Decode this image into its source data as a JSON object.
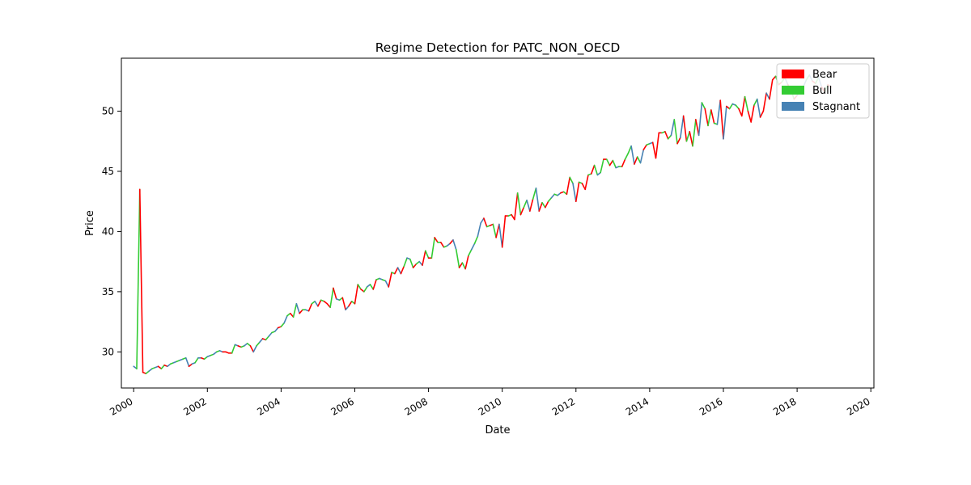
{
  "chart_data": {
    "type": "line",
    "title": "Regime Detection for PATC_NON_OECD",
    "xlabel": "Date",
    "ylabel": "Price",
    "xlim": [
      "1999-09-01",
      "2020-02-01"
    ],
    "ylim": [
      27.0,
      54.4
    ],
    "x_ticks": [
      "2000",
      "2002",
      "2004",
      "2006",
      "2008",
      "2010",
      "2012",
      "2014",
      "2016",
      "2018",
      "2020"
    ],
    "y_ticks": [
      30,
      35,
      40,
      45,
      50
    ],
    "grid": false,
    "legend_position": "top-right",
    "legend": [
      {
        "label": "Bear",
        "color": "#ff0000"
      },
      {
        "label": "Bull",
        "color": "#33cc33"
      },
      {
        "label": "Stagnant",
        "color": "#4682b4"
      }
    ],
    "regime_colors": {
      "Bear": "#ff0000",
      "Bull": "#33cc33",
      "Stagnant": "#4682b4"
    },
    "series": {
      "x_start": "2000-01",
      "frequency": "monthly",
      "points": [
        [
          28.8,
          "S"
        ],
        [
          28.6,
          "B"
        ],
        [
          43.5,
          "R"
        ],
        [
          28.3,
          "R"
        ],
        [
          28.2,
          "B"
        ],
        [
          28.4,
          "S"
        ],
        [
          28.6,
          "B"
        ],
        [
          28.7,
          "S"
        ],
        [
          28.8,
          "R"
        ],
        [
          28.6,
          "B"
        ],
        [
          28.9,
          "R"
        ],
        [
          28.8,
          "S"
        ],
        [
          29.0,
          "B"
        ],
        [
          29.1,
          "S"
        ],
        [
          29.2,
          "B"
        ],
        [
          29.3,
          "S"
        ],
        [
          29.4,
          "B"
        ],
        [
          29.5,
          "S"
        ],
        [
          28.8,
          "R"
        ],
        [
          29.0,
          "S"
        ],
        [
          29.1,
          "B"
        ],
        [
          29.5,
          "S"
        ],
        [
          29.5,
          "R"
        ],
        [
          29.4,
          "B"
        ],
        [
          29.6,
          "S"
        ],
        [
          29.7,
          "B"
        ],
        [
          29.8,
          "S"
        ],
        [
          30.0,
          "B"
        ],
        [
          30.1,
          "S"
        ],
        [
          30.0,
          "R"
        ],
        [
          30.0,
          "R"
        ],
        [
          29.9,
          "R"
        ],
        [
          29.9,
          "B"
        ],
        [
          30.6,
          "S"
        ],
        [
          30.5,
          "R"
        ],
        [
          30.4,
          "B"
        ],
        [
          30.5,
          "S"
        ],
        [
          30.7,
          "B"
        ],
        [
          30.5,
          "R"
        ],
        [
          30.0,
          "S"
        ],
        [
          30.5,
          "B"
        ],
        [
          30.8,
          "S"
        ],
        [
          31.1,
          "R"
        ],
        [
          31.0,
          "B"
        ],
        [
          31.3,
          "S"
        ],
        [
          31.6,
          "B"
        ],
        [
          31.7,
          "S"
        ],
        [
          32.0,
          "R"
        ],
        [
          32.1,
          "B"
        ],
        [
          32.4,
          "S"
        ],
        [
          33.0,
          "B"
        ],
        [
          33.2,
          "R"
        ],
        [
          32.9,
          "B"
        ],
        [
          34.0,
          "S"
        ],
        [
          33.2,
          "R"
        ],
        [
          33.5,
          "B"
        ],
        [
          33.5,
          "S"
        ],
        [
          33.4,
          "R"
        ],
        [
          34.0,
          "B"
        ],
        [
          34.2,
          "S"
        ],
        [
          33.8,
          "R"
        ],
        [
          34.3,
          "B"
        ],
        [
          34.2,
          "R"
        ],
        [
          34.0,
          "R"
        ],
        [
          33.7,
          "B"
        ],
        [
          35.3,
          "R"
        ],
        [
          34.4,
          "S"
        ],
        [
          34.3,
          "B"
        ],
        [
          34.5,
          "R"
        ],
        [
          33.5,
          "S"
        ],
        [
          33.8,
          "R"
        ],
        [
          34.2,
          "B"
        ],
        [
          34.0,
          "R"
        ],
        [
          35.6,
          "B"
        ],
        [
          35.2,
          "R"
        ],
        [
          35.0,
          "B"
        ],
        [
          35.4,
          "S"
        ],
        [
          35.6,
          "B"
        ],
        [
          35.2,
          "R"
        ],
        [
          36.0,
          "B"
        ],
        [
          36.1,
          "S"
        ],
        [
          36.0,
          "B"
        ],
        [
          35.9,
          "S"
        ],
        [
          35.4,
          "R"
        ],
        [
          36.6,
          "B"
        ],
        [
          36.5,
          "R"
        ],
        [
          37.0,
          "S"
        ],
        [
          36.5,
          "R"
        ],
        [
          37.1,
          "B"
        ],
        [
          37.8,
          "S"
        ],
        [
          37.7,
          "B"
        ],
        [
          37.0,
          "R"
        ],
        [
          37.3,
          "B"
        ],
        [
          37.5,
          "S"
        ],
        [
          37.2,
          "R"
        ],
        [
          38.4,
          "B"
        ],
        [
          37.8,
          "R"
        ],
        [
          37.8,
          "B"
        ],
        [
          39.5,
          "R"
        ],
        [
          39.1,
          "B"
        ],
        [
          39.1,
          "R"
        ],
        [
          38.7,
          "B"
        ],
        [
          38.8,
          "S"
        ],
        [
          39.0,
          "R"
        ],
        [
          39.3,
          "S"
        ],
        [
          38.5,
          "B"
        ],
        [
          37.0,
          "R"
        ],
        [
          37.4,
          "B"
        ],
        [
          36.9,
          "R"
        ],
        [
          38.0,
          "B"
        ],
        [
          38.5,
          "S"
        ],
        [
          39.0,
          "B"
        ],
        [
          39.6,
          "S"
        ],
        [
          40.7,
          "S"
        ],
        [
          41.1,
          "R"
        ],
        [
          40.4,
          "B"
        ],
        [
          40.5,
          "R"
        ],
        [
          40.6,
          "B"
        ],
        [
          39.5,
          "R"
        ],
        [
          40.6,
          "S"
        ],
        [
          38.7,
          "R"
        ],
        [
          41.3,
          "R"
        ],
        [
          41.3,
          "B"
        ],
        [
          41.4,
          "R"
        ],
        [
          41.0,
          "R"
        ],
        [
          43.2,
          "B"
        ],
        [
          41.4,
          "R"
        ],
        [
          42.0,
          "B"
        ],
        [
          42.6,
          "S"
        ],
        [
          41.7,
          "R"
        ],
        [
          42.7,
          "B"
        ],
        [
          43.6,
          "S"
        ],
        [
          41.7,
          "R"
        ],
        [
          42.4,
          "B"
        ],
        [
          42.0,
          "R"
        ],
        [
          42.5,
          "B"
        ],
        [
          42.8,
          "S"
        ],
        [
          43.1,
          "B"
        ],
        [
          43.0,
          "S"
        ],
        [
          43.2,
          "R"
        ],
        [
          43.3,
          "B"
        ],
        [
          43.1,
          "R"
        ],
        [
          44.5,
          "B"
        ],
        [
          44.0,
          "S"
        ],
        [
          42.5,
          "R"
        ],
        [
          44.1,
          "B"
        ],
        [
          44.0,
          "R"
        ],
        [
          43.5,
          "R"
        ],
        [
          44.7,
          "B"
        ],
        [
          44.8,
          "R"
        ],
        [
          45.5,
          "B"
        ],
        [
          44.7,
          "S"
        ],
        [
          44.9,
          "B"
        ],
        [
          46.0,
          "R"
        ],
        [
          46.0,
          "B"
        ],
        [
          45.5,
          "R"
        ],
        [
          45.9,
          "B"
        ],
        [
          45.3,
          "S"
        ],
        [
          45.4,
          "B"
        ],
        [
          45.4,
          "R"
        ],
        [
          46.0,
          "B"
        ],
        [
          46.5,
          "B"
        ],
        [
          47.1,
          "S"
        ],
        [
          45.6,
          "R"
        ],
        [
          46.2,
          "B"
        ],
        [
          45.7,
          "S"
        ],
        [
          46.8,
          "R"
        ],
        [
          47.2,
          "B"
        ],
        [
          47.3,
          "S"
        ],
        [
          47.4,
          "R"
        ],
        [
          46.1,
          "R"
        ],
        [
          48.2,
          "R"
        ],
        [
          48.2,
          "B"
        ],
        [
          48.3,
          "R"
        ],
        [
          47.7,
          "B"
        ],
        [
          48.0,
          "S"
        ],
        [
          49.3,
          "B"
        ],
        [
          47.3,
          "R"
        ],
        [
          47.8,
          "S"
        ],
        [
          49.6,
          "R"
        ],
        [
          47.5,
          "B"
        ],
        [
          48.3,
          "R"
        ],
        [
          47.1,
          "B"
        ],
        [
          49.3,
          "R"
        ],
        [
          48.0,
          "S"
        ],
        [
          50.7,
          "B"
        ],
        [
          50.2,
          "R"
        ],
        [
          48.8,
          "B"
        ],
        [
          50.1,
          "R"
        ],
        [
          49.0,
          "B"
        ],
        [
          48.9,
          "S"
        ],
        [
          50.9,
          "R"
        ],
        [
          47.7,
          "S"
        ],
        [
          50.4,
          "R"
        ],
        [
          50.2,
          "B"
        ],
        [
          50.6,
          "S"
        ],
        [
          50.5,
          "B"
        ],
        [
          50.2,
          "R"
        ],
        [
          49.6,
          "R"
        ],
        [
          51.2,
          "B"
        ],
        [
          50.0,
          "R"
        ],
        [
          49.1,
          "R"
        ],
        [
          50.5,
          "B"
        ],
        [
          51.0,
          "S"
        ],
        [
          49.5,
          "R"
        ],
        [
          50.0,
          "R"
        ],
        [
          51.5,
          "S"
        ],
        [
          51.0,
          "R"
        ],
        [
          52.6,
          "R"
        ],
        [
          52.9,
          "B"
        ],
        [
          52.2,
          "R"
        ],
        [
          52.4,
          "B"
        ],
        [
          52.8,
          "S"
        ],
        [
          52.2,
          "R"
        ],
        [
          51.8,
          "B"
        ],
        [
          51.0,
          "R"
        ],
        [
          51.3,
          "S"
        ],
        [
          51.8,
          "B"
        ],
        [
          52.0,
          "S"
        ],
        [
          52.6,
          "B"
        ],
        [
          53.0,
          "S"
        ],
        [
          52.5,
          "R"
        ],
        [
          52.3,
          "B"
        ],
        [
          52.8,
          "S"
        ],
        [
          52.0,
          "R"
        ],
        [
          51.6,
          "B"
        ],
        [
          52.2,
          "R"
        ],
        [
          52.0,
          "B"
        ]
      ]
    }
  }
}
